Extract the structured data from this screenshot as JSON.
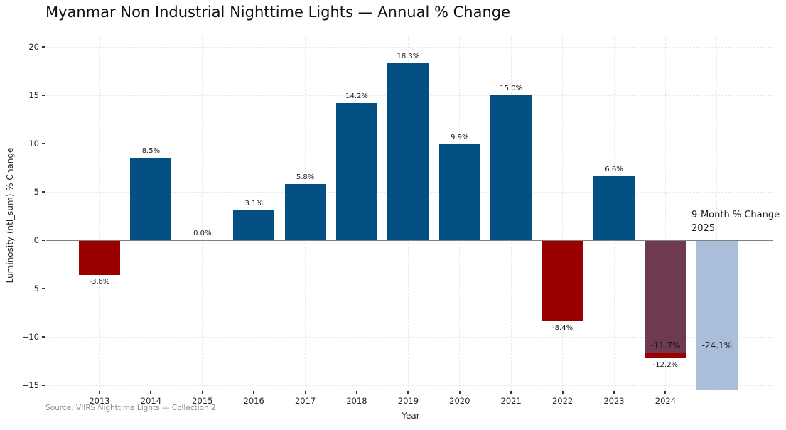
{
  "chart_data": {
    "type": "bar",
    "title": "Myanmar Non Industrial Nighttime Lights — Annual % Change",
    "xlabel": "Year",
    "ylabel": "Luminosity (ntl_sum) % Change",
    "source": "Source: VIIRS Nighttime Lights — Collection 2",
    "annotation": {
      "lines": [
        "9-Month % Change",
        "2025"
      ]
    },
    "ylim": [
      -15.5,
      20.6
    ],
    "ytick_values": [
      20,
      15,
      10,
      5,
      0,
      -5,
      -10,
      -15
    ],
    "ytick_labels": [
      "20",
      "15",
      "10",
      "5",
      "0",
      "−5",
      "−10",
      "−15"
    ],
    "grid": {
      "horizontal": true,
      "vertical": true,
      "style": "dashed",
      "color": "#e9e9e9"
    },
    "zero_line_color": "#808080",
    "colors": {
      "positive": "#045085",
      "negative": "#990000",
      "overlay_9mo_2024": "#6E3A51",
      "nine_month_2025": "#A9BED8"
    },
    "bars": [
      {
        "category": "2013",
        "value": -3.6,
        "label": "-3.6%",
        "color": "negative"
      },
      {
        "category": "2014",
        "value": 8.5,
        "label": "8.5%",
        "color": "positive"
      },
      {
        "category": "2015",
        "value": 0.0,
        "label": "0.0%",
        "color": "positive"
      },
      {
        "category": "2016",
        "value": 3.1,
        "label": "3.1%",
        "color": "positive"
      },
      {
        "category": "2017",
        "value": 5.8,
        "label": "5.8%",
        "color": "positive"
      },
      {
        "category": "2018",
        "value": 14.2,
        "label": "14.2%",
        "color": "positive"
      },
      {
        "category": "2019",
        "value": 18.3,
        "label": "18.3%",
        "color": "positive"
      },
      {
        "category": "2020",
        "value": 9.9,
        "label": "9.9%",
        "color": "positive"
      },
      {
        "category": "2021",
        "value": 15.0,
        "label": "15.0%",
        "color": "positive"
      },
      {
        "category": "2022",
        "value": -8.4,
        "label": "-8.4%",
        "color": "negative"
      },
      {
        "category": "2023",
        "value": 6.6,
        "label": "6.6%",
        "color": "positive"
      },
      {
        "category": "2024",
        "value": -12.2,
        "label": "-12.2%",
        "color": "negative",
        "overlay": {
          "value": -11.7,
          "label": "-11.7%",
          "color": "overlay_9mo_2024"
        }
      },
      {
        "category": "2025",
        "value": -24.1,
        "label": "-24.1%",
        "color": "nine_month_2025",
        "clipped_at_axis": true,
        "axis_label_hidden": true,
        "label_inside": true,
        "label_anchor_value": -11.7
      }
    ]
  }
}
